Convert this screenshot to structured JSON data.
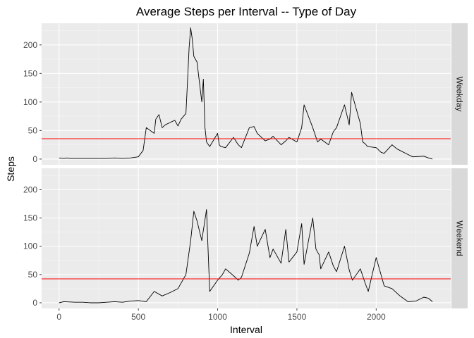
{
  "chart_data": {
    "type": "line",
    "title": "Average Steps per Interval -- Type of Day",
    "xlabel": "Interval",
    "ylabel": "Steps",
    "xlim": [
      -110,
      2470
    ],
    "ylim": [
      -10,
      238
    ],
    "x_ticks": [
      0,
      500,
      1000,
      1500,
      2000
    ],
    "y_ticks": [
      0,
      50,
      100,
      150,
      200
    ],
    "grid": true,
    "colors": {
      "panel_background": "#ebebeb",
      "grid_major": "#ffffff",
      "grid_minor": "#f5f5f5",
      "strip_background": "#d9d9d9",
      "line": "#000000",
      "mean_line": "#ff0000"
    },
    "panels": [
      {
        "strip": "Weekday",
        "mean": 35.6,
        "series": [
          {
            "x": [
              0,
              30,
              50,
              70,
              100,
              150,
              200,
              250,
              300,
              350,
              400,
              450,
              500,
              530,
              550,
              600,
              610,
              630,
              650,
              670,
              700,
              730,
              750,
              770,
              800,
              810,
              820,
              830,
              840,
              850,
              870,
              900,
              910,
              920,
              930,
              950,
              1000,
              1010,
              1020,
              1050,
              1100,
              1130,
              1150,
              1200,
              1230,
              1250,
              1300,
              1330,
              1350,
              1400,
              1430,
              1450,
              1500,
              1530,
              1545,
              1600,
              1630,
              1650,
              1700,
              1730,
              1750,
              1800,
              1830,
              1845,
              1900,
              1915,
              1930,
              1945,
              2000,
              2030,
              2050,
              2100,
              2130,
              2150,
              2200,
              2230,
              2300,
              2330,
              2355
            ],
            "y": [
              2,
              1,
              2,
              1,
              1,
              1,
              1,
              1,
              1,
              2,
              1,
              2,
              4,
              15,
              55,
              45,
              70,
              78,
              55,
              60,
              64,
              68,
              58,
              70,
              80,
              135,
              195,
              230,
              210,
              180,
              170,
              100,
              140,
              55,
              30,
              22,
              45,
              25,
              22,
              20,
              38,
              25,
              20,
              55,
              57,
              45,
              32,
              35,
              40,
              25,
              32,
              38,
              30,
              55,
              95,
              55,
              30,
              35,
              25,
              48,
              55,
              95,
              60,
              117,
              62,
              30,
              27,
              22,
              20,
              12,
              10,
              25,
              18,
              15,
              8,
              4,
              5,
              2,
              0
            ]
          }
        ]
      },
      {
        "strip": "Weekend",
        "mean": 42.4,
        "series": [
          {
            "x": [
              0,
              30,
              100,
              150,
              200,
              250,
              300,
              350,
              400,
              450,
              500,
              550,
              600,
              650,
              700,
              750,
              800,
              830,
              850,
              870,
              900,
              930,
              950,
              1000,
              1030,
              1050,
              1100,
              1130,
              1150,
              1200,
              1230,
              1250,
              1300,
              1330,
              1350,
              1400,
              1430,
              1450,
              1500,
              1530,
              1545,
              1600,
              1620,
              1640,
              1650,
              1700,
              1730,
              1750,
              1800,
              1830,
              1850,
              1900,
              1930,
              1950,
              2000,
              2030,
              2050,
              2100,
              2150,
              2200,
              2250,
              2300,
              2330,
              2355
            ],
            "y": [
              0,
              2,
              1,
              1,
              0,
              0,
              1,
              2,
              1,
              3,
              4,
              2,
              20,
              12,
              18,
              25,
              50,
              110,
              162,
              145,
              110,
              165,
              20,
              40,
              50,
              60,
              48,
              40,
              45,
              88,
              135,
              100,
              130,
              80,
              95,
              70,
              130,
              72,
              90,
              140,
              68,
              150,
              95,
              85,
              60,
              90,
              65,
              55,
              100,
              58,
              40,
              60,
              35,
              20,
              80,
              50,
              30,
              25,
              12,
              2,
              3,
              10,
              8,
              2
            ]
          }
        ]
      }
    ]
  }
}
